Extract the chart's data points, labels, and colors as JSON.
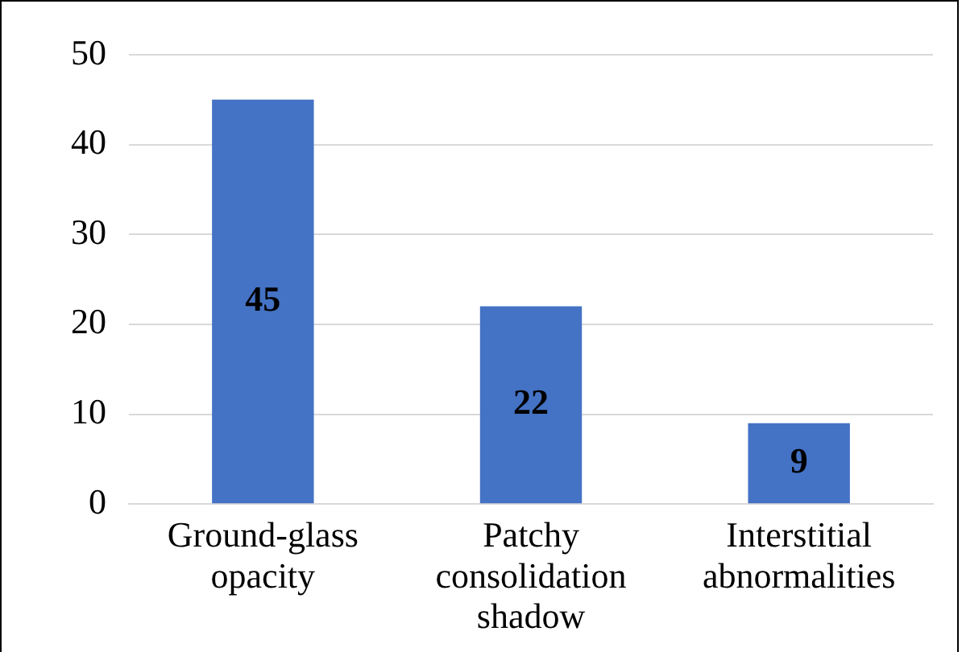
{
  "chart_data": {
    "type": "bar",
    "categories": [
      "Ground-glass opacity",
      "Patchy consolidation shadow",
      "Interstitial abnormalities"
    ],
    "values": [
      45,
      22,
      9
    ],
    "color": "#4472c4",
    "ylim": [
      0,
      50
    ],
    "yticks": [
      0,
      10,
      20,
      30,
      40,
      50
    ],
    "grid": "y",
    "data_labels": true,
    "legend": false
  }
}
